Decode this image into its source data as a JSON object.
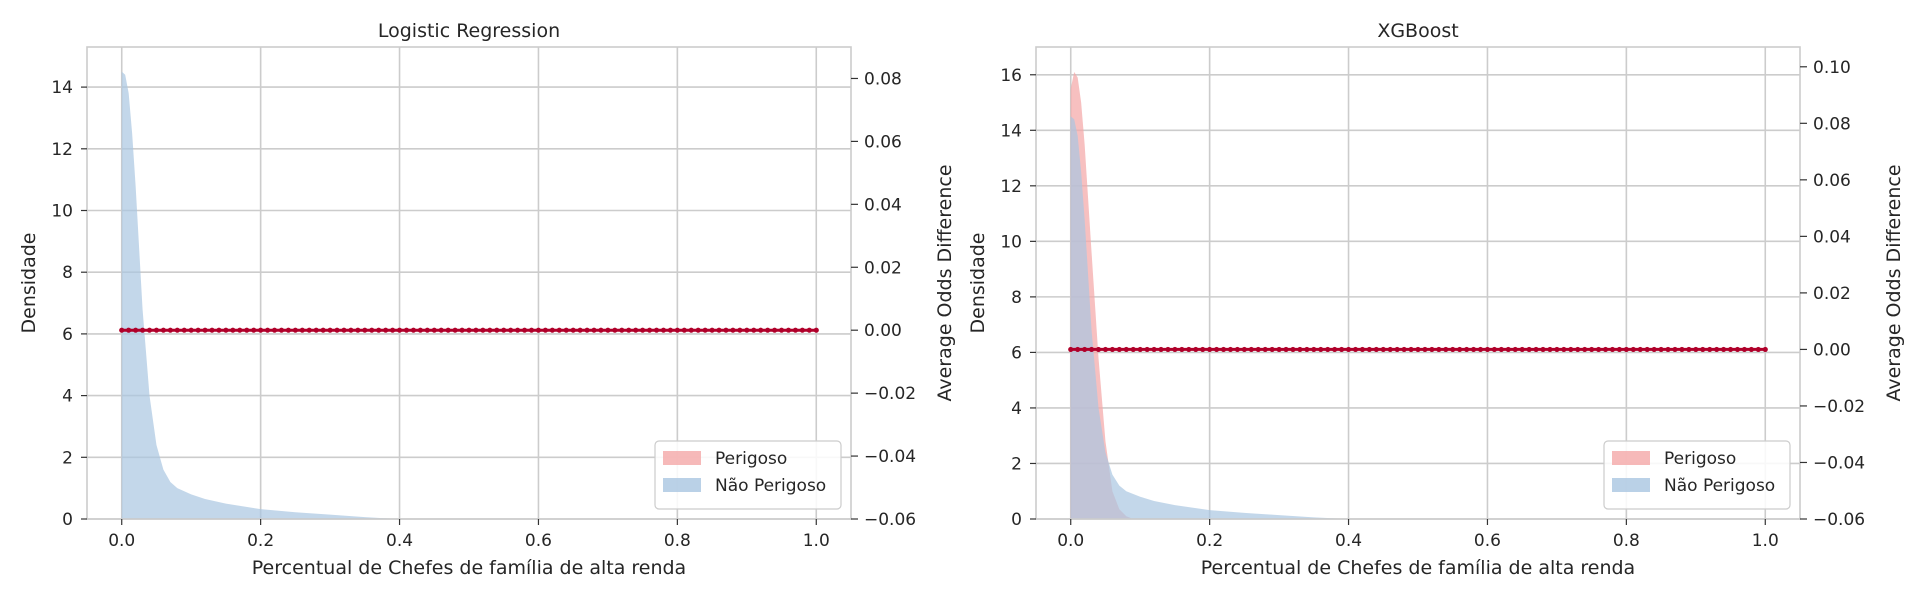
{
  "chart_data": [
    {
      "type": "area",
      "title": "Logistic Regression",
      "xlabel": "Percentual de Chefes de família de alta renda",
      "ylabel": "Densidade",
      "y2label": "Average Odds Difference",
      "xlim": [
        -0.05,
        1.05
      ],
      "ylim": [
        0,
        15.3
      ],
      "y2lim": [
        -0.06,
        0.09
      ],
      "xticks": [
        "0.0",
        "0.2",
        "0.4",
        "0.6",
        "0.8",
        "1.0"
      ],
      "yticks": [
        "0",
        "2",
        "4",
        "6",
        "8",
        "10",
        "12",
        "14"
      ],
      "y2ticks": [
        "−0.06",
        "−0.04",
        "−0.02",
        "0.00",
        "0.02",
        "0.04",
        "0.06",
        "0.08"
      ],
      "grid": true,
      "legend_position": "lower-right",
      "series": [
        {
          "name": "Perigoso",
          "color": "#f4a7a7",
          "x": [],
          "y": []
        },
        {
          "name": "Não Perigoso",
          "color": "#a9c6e1",
          "x": [
            0.0,
            0.005,
            0.01,
            0.015,
            0.02,
            0.025,
            0.03,
            0.04,
            0.05,
            0.06,
            0.07,
            0.08,
            0.1,
            0.12,
            0.15,
            0.2,
            0.25,
            0.3,
            0.35,
            0.4
          ],
          "y": [
            14.5,
            14.4,
            13.8,
            12.5,
            10.8,
            8.8,
            6.8,
            4.0,
            2.4,
            1.6,
            1.2,
            1.0,
            0.8,
            0.65,
            0.5,
            0.32,
            0.22,
            0.14,
            0.06,
            0.0
          ]
        }
      ],
      "line": {
        "color": "#b0002a",
        "x_range": [
          0.0,
          1.0
        ],
        "n_points": 101,
        "value": 0.0
      }
    },
    {
      "type": "area",
      "title": "XGBoost",
      "xlabel": "Percentual de Chefes de família de alta renda",
      "ylabel": "Densidade",
      "y2label": "Average Odds Difference",
      "xlim": [
        -0.05,
        1.05
      ],
      "ylim": [
        0,
        17
      ],
      "y2lim": [
        -0.06,
        0.107
      ],
      "xticks": [
        "0.0",
        "0.2",
        "0.4",
        "0.6",
        "0.8",
        "1.0"
      ],
      "yticks": [
        "0",
        "2",
        "4",
        "6",
        "8",
        "10",
        "12",
        "14",
        "16"
      ],
      "y2ticks": [
        "−0.06",
        "−0.04",
        "−0.02",
        "0.00",
        "0.02",
        "0.04",
        "0.06",
        "0.08",
        "0.10"
      ],
      "grid": true,
      "legend_position": "lower-right",
      "series": [
        {
          "name": "Perigoso",
          "color": "#f4a7a7",
          "x": [
            0.0,
            0.005,
            0.01,
            0.015,
            0.02,
            0.03,
            0.04,
            0.05,
            0.06,
            0.07,
            0.08,
            0.09
          ],
          "y": [
            15.5,
            16.1,
            15.9,
            15.0,
            13.5,
            9.6,
            5.8,
            2.8,
            1.0,
            0.35,
            0.1,
            0.0
          ]
        },
        {
          "name": "Não Perigoso",
          "color": "#a9c6e1",
          "x": [
            0.0,
            0.005,
            0.01,
            0.015,
            0.02,
            0.025,
            0.03,
            0.04,
            0.05,
            0.06,
            0.07,
            0.08,
            0.1,
            0.12,
            0.15,
            0.2,
            0.25,
            0.3,
            0.35,
            0.4
          ],
          "y": [
            14.5,
            14.4,
            13.8,
            12.5,
            10.8,
            8.8,
            6.8,
            4.0,
            2.4,
            1.6,
            1.2,
            1.0,
            0.8,
            0.65,
            0.5,
            0.32,
            0.22,
            0.14,
            0.06,
            0.0
          ]
        }
      ],
      "line": {
        "color": "#b0002a",
        "x_range": [
          0.0,
          1.0
        ],
        "n_points": 101,
        "value": 0.0
      }
    }
  ]
}
